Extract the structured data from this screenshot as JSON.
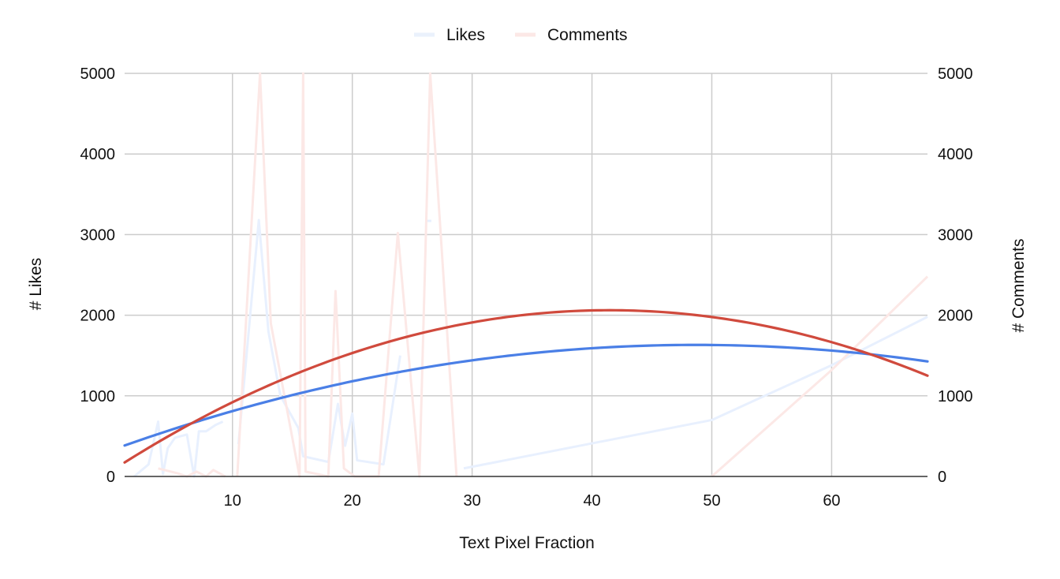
{
  "chart_data": {
    "type": "line",
    "title": "",
    "xlabel": "Text Pixel Fraction",
    "ylabel_left": "# Likes",
    "ylabel_right": "# Comments",
    "xlim": [
      1,
      68
    ],
    "ylim_left": [
      0,
      5000
    ],
    "ylim_right": [
      0,
      5000
    ],
    "x_ticks": [
      10,
      20,
      30,
      40,
      50,
      60
    ],
    "y_ticks_left": [
      0,
      1000,
      2000,
      3000,
      4000,
      5000
    ],
    "y_ticks_right": [
      0,
      1000,
      2000,
      3000,
      4000,
      5000
    ],
    "grid": true,
    "legend_position": "top",
    "legend": [
      {
        "name": "Likes",
        "color": "#eaf1fc"
      },
      {
        "name": "Comments",
        "color": "#fce8e6"
      }
    ],
    "series": [
      {
        "name": "Likes",
        "axis": "left",
        "color": "#e8f0fe",
        "points": [
          [
            1.8,
            0
          ],
          [
            3,
            150
          ],
          [
            3.8,
            680
          ],
          [
            4.2,
            30
          ],
          [
            4.6,
            350
          ],
          [
            5.2,
            480
          ],
          [
            6.2,
            520
          ],
          [
            6.8,
            0
          ],
          [
            7.2,
            560
          ],
          [
            7.8,
            560
          ],
          [
            8.6,
            640
          ],
          [
            9.2,
            680
          ]
        ]
      },
      {
        "name": "Likes",
        "axis": "left",
        "color": "#e8f0fe",
        "points": [
          [
            10.5,
            400
          ],
          [
            12.2,
            3180
          ],
          [
            13,
            1800
          ],
          [
            14,
            1000
          ],
          [
            15.5,
            600
          ],
          [
            15.9,
            250
          ],
          [
            18,
            180
          ],
          [
            18.8,
            900
          ],
          [
            19.4,
            380
          ],
          [
            20,
            780
          ],
          [
            20.4,
            200
          ],
          [
            22.6,
            150
          ],
          [
            24,
            1500
          ]
        ]
      },
      {
        "name": "Likes",
        "axis": "left",
        "color": "#e8f0fe",
        "points": [
          [
            26.2,
            3170
          ],
          [
            26.6,
            3170
          ]
        ]
      },
      {
        "name": "Likes",
        "axis": "left",
        "color": "#e8f0fe",
        "points": [
          [
            29.3,
            100
          ],
          [
            50,
            700
          ],
          [
            60,
            1380
          ],
          [
            68,
            1980
          ]
        ]
      },
      {
        "name": "Comments",
        "axis": "right",
        "color": "#fce8e6",
        "points": [
          [
            3.8,
            100
          ],
          [
            5.4,
            40
          ],
          [
            6.2,
            0
          ],
          [
            7,
            60
          ],
          [
            7.8,
            0
          ],
          [
            8.4,
            80
          ],
          [
            9.4,
            0
          ]
        ]
      },
      {
        "name": "Comments",
        "axis": "right",
        "color": "#fce8e6",
        "points": [
          [
            10.4,
            0
          ],
          [
            12.3,
            5000
          ],
          [
            13.2,
            1900
          ],
          [
            15.6,
            0
          ],
          [
            15.9,
            5000
          ],
          [
            16.1,
            60
          ],
          [
            18,
            0
          ],
          [
            18.6,
            2300
          ],
          [
            19.3,
            100
          ],
          [
            20.2,
            0
          ],
          [
            22.2,
            0
          ],
          [
            23.8,
            3020
          ],
          [
            25.6,
            0
          ],
          [
            26.5,
            5000
          ],
          [
            28.7,
            0
          ]
        ]
      },
      {
        "name": "Comments",
        "axis": "right",
        "color": "#fce8e6",
        "points": [
          [
            50,
            0
          ],
          [
            60,
            1320
          ],
          [
            68,
            2480
          ]
        ]
      },
      {
        "name": "Likes trendline",
        "axis": "left",
        "color": "#4a7fe6",
        "type": "trendline",
        "polynomial_a": -0.621,
        "points": [
          [
            1,
            380
          ],
          [
            10,
            820
          ],
          [
            20,
            1180
          ],
          [
            30,
            1430
          ],
          [
            40,
            1590
          ],
          [
            49,
            1635
          ],
          [
            60,
            1570
          ],
          [
            68,
            1420
          ]
        ]
      },
      {
        "name": "Comments trendline",
        "axis": "right",
        "color": "#d04a3d",
        "type": "trendline",
        "polynomial_a": -1.072,
        "points": [
          [
            1,
            170
          ],
          [
            10,
            930
          ],
          [
            20,
            1530
          ],
          [
            30,
            1900
          ],
          [
            41.4,
            2060
          ],
          [
            50,
            1980
          ],
          [
            60,
            1680
          ],
          [
            68,
            1240
          ]
        ]
      }
    ]
  }
}
